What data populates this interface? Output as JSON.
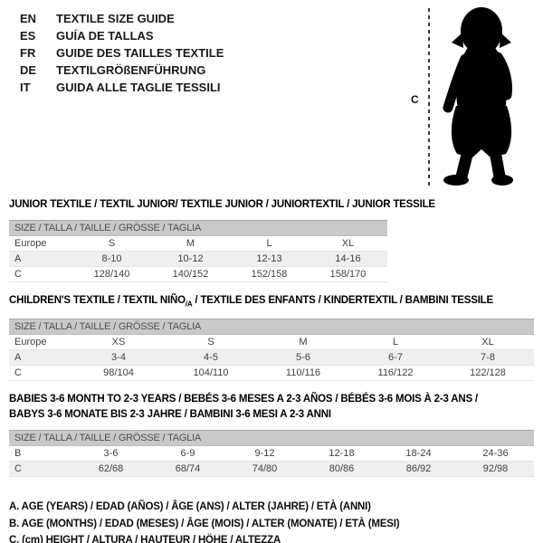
{
  "header": {
    "languages": [
      {
        "code": "EN",
        "label": "TEXTILE SIZE GUIDE"
      },
      {
        "code": "ES",
        "label": "GUÍA DE TALLAS"
      },
      {
        "code": "FR",
        "label": "GUIDE DES TAILLES TEXTILE"
      },
      {
        "code": "DE",
        "label": "TEXTILGRÖßENFÜHRUNG"
      },
      {
        "code": "IT",
        "label": "GUIDA ALLE TAGLIE TESSILI"
      }
    ]
  },
  "figure": {
    "icon": "baby-silhouette",
    "measure_label": "C"
  },
  "tables": [
    {
      "id": "junior",
      "title_lines": [
        [
          {
            "t": "JUNIOR TEXTILE / TEXTIL JUNIOR/ TEXTILE JUNIOR / JUNIORTEXTIL / JUNIOR TESSILE"
          }
        ]
      ],
      "size_header": "SIZE / TALLA / TAILLE / GRÖSSE / TAGLIA",
      "rows": [
        {
          "label": "Europe",
          "values": [
            "S",
            "M",
            "L",
            "XL"
          ]
        },
        {
          "label": "A",
          "values": [
            "8-10",
            "10-12",
            "12-13",
            "14-16"
          ]
        },
        {
          "label": "C",
          "values": [
            "128/140",
            "140/152",
            "152/158",
            "158/170"
          ]
        }
      ]
    },
    {
      "id": "children",
      "title_lines": [
        [
          {
            "t": "CHILDREN'S TEXTILE / TEXTIL NIÑO"
          },
          {
            "t": "/A",
            "sub": true
          },
          {
            "t": " / TEXTILE DES ENFANTS / KINDERTEXTIL / BAMBINI TESSILE"
          }
        ]
      ],
      "size_header": "SIZE / TALLA / TAILLE / GRÖSSE / TAGLIA",
      "rows": [
        {
          "label": "Europe",
          "values": [
            "XS",
            "S",
            "M",
            "L",
            "XL"
          ]
        },
        {
          "label": "A",
          "values": [
            "3-4",
            "4-5",
            "5-6",
            "6-7",
            "7-8"
          ]
        },
        {
          "label": "C",
          "values": [
            "98/104",
            "104/110",
            "110/116",
            "116/122",
            "122/128"
          ]
        }
      ]
    },
    {
      "id": "babies",
      "title_lines": [
        [
          {
            "t": "BABIES 3-6 MONTH TO 2-3 YEARS / BEBÉS 3-6 MESES A 2-3 AÑOS / BÉBÉS 3-6 MOIS À 2-3 ANS /"
          }
        ],
        [
          {
            "t": "BABYS 3-6 MONATE BIS 2-3 JAHRE / BAMBINI 3-6 MESI A 2-3 ANNI"
          }
        ]
      ],
      "size_header": "SIZE / TALLA / TAILLE / GRÖSSE / TAGLIA",
      "rows": [
        {
          "label": "B",
          "values": [
            "3-6",
            "6-9",
            "9-12",
            "12-18",
            "18-24",
            "24-36"
          ]
        },
        {
          "label": "C",
          "values": [
            "62/68",
            "68/74",
            "74/80",
            "80/86",
            "86/92",
            "92/98"
          ]
        }
      ]
    }
  ],
  "footnotes": [
    "A. AGE (YEARS) / EDAD (AÑOS) / ÂGE (ANS) / ALTER (JAHRE) / ETÀ (ANNI)",
    "B. AGE (MONTHS) / EDAD (MESES) / ÂGE (MOIS) / ALTER (MONATE) / ETÀ (MESI)",
    "C. (cm) HEIGHT / ALTURA / HAUTEUR / HÖHE / ALTEZZA"
  ],
  "colors": {
    "size_header_bar": "#c9c9c9",
    "alt_row": "#efefef",
    "table_text": "#3f3f3f",
    "silhouette": "#000000"
  }
}
